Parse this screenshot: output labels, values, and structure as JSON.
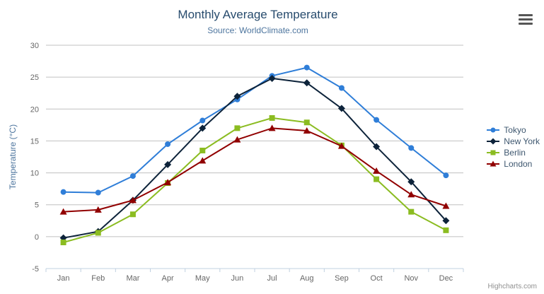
{
  "chart": {
    "credits": "Highcharts.com",
    "menu_icon": "hamburger-menu-icon"
  },
  "chart_data": {
    "type": "line",
    "title": "Monthly Average Temperature",
    "subtitle": "Source: WorldClimate.com",
    "categories": [
      "Jan",
      "Feb",
      "Mar",
      "Apr",
      "May",
      "Jun",
      "Jul",
      "Aug",
      "Sep",
      "Oct",
      "Nov",
      "Dec"
    ],
    "xlabel": "",
    "ylabel": "Temperature (°C)",
    "ylim": [
      -5,
      30
    ],
    "ytick_step": 5,
    "grid": true,
    "legend_position": "right",
    "colors": {
      "grid": "#C0C0C0",
      "axis_line": "#C0D0E0",
      "axis_label": "#666666",
      "axis_title": "#4d759e",
      "legend_text": "#3E576F"
    },
    "series": [
      {
        "name": "Tokyo",
        "color": "#2f7ed8",
        "marker": "circle",
        "values": [
          7.0,
          6.9,
          9.5,
          14.5,
          18.2,
          21.5,
          25.2,
          26.5,
          23.3,
          18.3,
          13.9,
          9.6
        ]
      },
      {
        "name": "New York",
        "color": "#0d233a",
        "marker": "diamond",
        "values": [
          -0.2,
          0.8,
          5.7,
          11.3,
          17.0,
          22.0,
          24.8,
          24.1,
          20.1,
          14.1,
          8.6,
          2.5
        ]
      },
      {
        "name": "Berlin",
        "color": "#8bbc21",
        "marker": "square",
        "values": [
          -0.9,
          0.6,
          3.5,
          8.4,
          13.5,
          17.0,
          18.6,
          17.9,
          14.3,
          9.0,
          3.9,
          1.0
        ]
      },
      {
        "name": "London",
        "color": "#910000",
        "marker": "triangle",
        "values": [
          3.9,
          4.2,
          5.7,
          8.5,
          11.9,
          15.2,
          17.0,
          16.6,
          14.2,
          10.3,
          6.6,
          4.8
        ]
      }
    ]
  }
}
